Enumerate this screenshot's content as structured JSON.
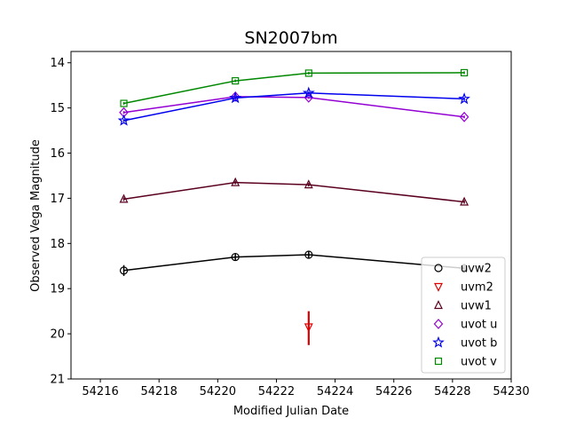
{
  "chart_data": {
    "type": "scatter",
    "title": "SN2007bm",
    "xlabel": "Modified Julian Date",
    "ylabel": "Observed Vega Magnitude",
    "xlim": [
      54215,
      54230
    ],
    "ylim": [
      21,
      13.75
    ],
    "y_inverted": true,
    "grid": false,
    "legend_position": "lower-right",
    "x_ticks": [
      54216,
      54218,
      54220,
      54222,
      54224,
      54226,
      54228,
      54230
    ],
    "y_ticks": [
      14,
      15,
      16,
      17,
      18,
      19,
      20,
      21
    ],
    "series": [
      {
        "name": "uvw2",
        "marker": "circle",
        "color": "#000000",
        "x": [
          54216.8,
          54220.6,
          54223.1,
          54228.4
        ],
        "y": [
          18.6,
          18.3,
          18.25,
          18.55
        ],
        "yerr": [
          0.12,
          0.08,
          0.08,
          0.1
        ]
      },
      {
        "name": "uvm2",
        "marker": "triangle-down",
        "color": "#dd0000",
        "upper_limit": true,
        "x": [
          54223.1
        ],
        "y": [
          19.85
        ],
        "yerr_low": [
          0.35
        ],
        "yerr_high": [
          0.4
        ]
      },
      {
        "name": "uvw1",
        "marker": "triangle-up",
        "color": "#5a0020",
        "x": [
          54216.8,
          54220.6,
          54223.1,
          54228.4
        ],
        "y": [
          17.02,
          16.65,
          16.7,
          17.08
        ],
        "yerr": [
          0.04,
          0.04,
          0.04,
          0.04
        ]
      },
      {
        "name": "uvot u",
        "marker": "diamond",
        "color": "#9400d3",
        "x": [
          54216.8,
          54220.6,
          54223.1,
          54228.4
        ],
        "y": [
          15.1,
          14.75,
          14.77,
          15.2
        ],
        "yerr": [
          0.03,
          0.03,
          0.03,
          0.03
        ]
      },
      {
        "name": "uvot b",
        "marker": "star",
        "color": "#0000ee",
        "x": [
          54216.8,
          54220.6,
          54223.1,
          54228.4
        ],
        "y": [
          15.28,
          14.78,
          14.67,
          14.8
        ],
        "yerr": [
          0.03,
          0.03,
          0.03,
          0.03
        ]
      },
      {
        "name": "uvot v",
        "marker": "square",
        "color": "#008800",
        "x": [
          54216.8,
          54220.6,
          54223.1,
          54228.4
        ],
        "y": [
          14.9,
          14.4,
          14.23,
          14.22
        ],
        "yerr": [
          0.03,
          0.03,
          0.03,
          0.03
        ]
      }
    ]
  }
}
